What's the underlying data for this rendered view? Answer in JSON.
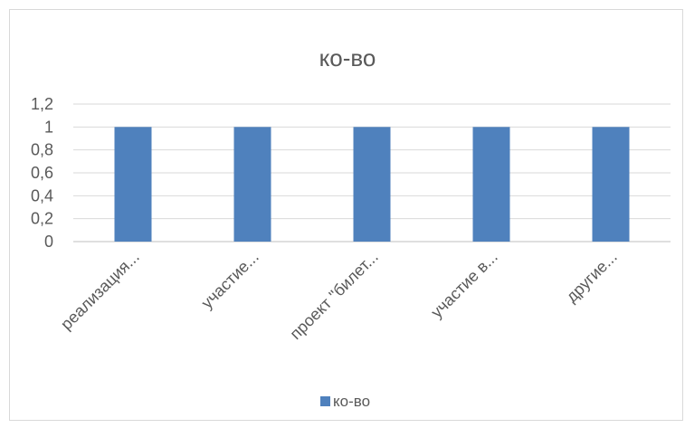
{
  "chart_data": {
    "type": "bar",
    "title": "ко-во",
    "categories": [
      "реализация...",
      "участие...",
      "проект \"билет...",
      "участие в...",
      "другие..."
    ],
    "series": [
      {
        "name": "ко-во",
        "values": [
          1,
          1,
          1,
          1,
          1
        ],
        "color": "#4f81bd"
      }
    ],
    "y_ticks": [
      "0",
      "0,2",
      "0,4",
      "0,6",
      "0,8",
      "1",
      "1,2"
    ],
    "ylim": [
      0,
      1.2
    ],
    "grid": true,
    "legend": "bottom",
    "xlabel": "",
    "ylabel": ""
  }
}
